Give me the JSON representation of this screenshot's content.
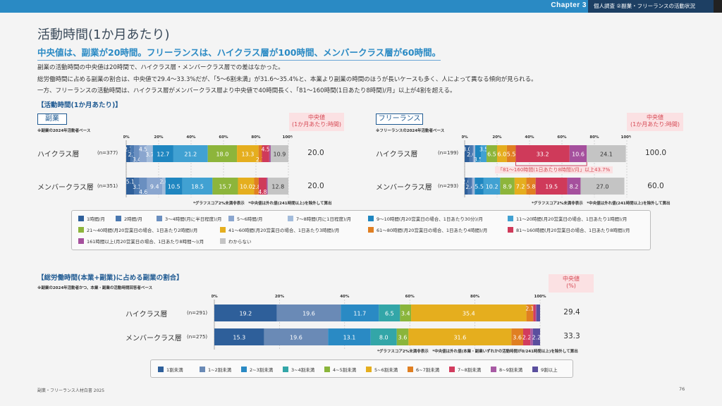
{
  "header": {
    "chapter": "Chapter 3",
    "section": "個人調査 ②副業・フリーランスの活動状況"
  },
  "page": {
    "title": "活動時間(1か月あたり)",
    "lead": "中央値は、副業が20時間。フリーランスは、ハイクラス層が100時間、メンバークラス層が60時間。",
    "body": [
      "副業の活動時間の中央値は20時間で、ハイクラス層・メンバークラス層での差はなかった。",
      "総労働時間に占める副業の割合は、中央値で29.4〜33.3%だが、「5〜6割未満」が31.6〜35.4%と、本業より副業の時間のほうが長いケースも多く、人によって異なる傾向が見られる。",
      "一方、フリーランスの活動時間は、ハイクラス層がメンバークラス層より中央値で40時間長く、「81〜160時間(1日あたり8時間)/月」以上が4割を超える。"
    ]
  },
  "section1": {
    "heading": "【活動時間(1か月あたり)】",
    "note_graph": "*グラフスコア2%未満非表示",
    "note_median": "*中央値は外れ値(241時間以上)を除外して算出"
  },
  "section2": {
    "heading": "【総労働時間(本業+副業)に占める副業の割合】",
    "base": "※副業の2024年活動者かつ、本業・副業の活動時間回答者ベース",
    "median_header": [
      "中央値",
      "(%)"
    ],
    "note": "*グラフスコア2%未満非表示　*中央値は外れ値(本業・副業いずれかの活動時間が0/241時間以上)を除外して算出"
  },
  "colors": {
    "hours": [
      "#2e5f9a",
      "#4a78b0",
      "#6a8fc0",
      "#8aa6cf",
      "#a3bcdb",
      "#1f86c0",
      "#41a1d2",
      "#8db53b",
      "#e5ae1e",
      "#e07f22",
      "#cf3a5a",
      "#a5509d",
      "#c4c4c4"
    ],
    "share": [
      "#2e5f9a",
      "#6a8ab6",
      "#2a8ac4",
      "#33a6a8",
      "#8ab53b",
      "#e5ae1e",
      "#e07f22",
      "#d23c5e",
      "#a85aa4",
      "#5a4f9e"
    ],
    "accent": "#2a8ac4",
    "median": "#d64a55"
  },
  "legend_hours": [
    "1時間/月",
    "2時間/月",
    "3〜4時間(月に半日程度)/月",
    "5〜6時間/月",
    "7〜8時間(月に1日程度)/月",
    "9〜10時間(月20営業日の場合、1日あたり30分)/月",
    "11〜20時間(月20営業日の場合、1日あたり1時間)/月",
    "21〜40時間(月20営業日の場合、1日あたり2時間)/月",
    "41〜60時間(月20営業日の場合、1日あたり3時間)/月",
    "61〜80時間(月20営業日の場合、1日あたり4時間)/月",
    "81〜160時間(月20営業日の場合、1日あたり8時間)/月",
    "161時間以上(月20営業日の場合、1日あたり8時間〜)/月",
    "わからない"
  ],
  "legend_share": [
    "1割未満",
    "1~2割未満",
    "2~3割未満",
    "3~4割未満",
    "4~5割未満",
    "5~6割未満",
    "6~7割未満",
    "7~8割未満",
    "8~9割未満",
    "9割以上"
  ],
  "chart_data": [
    {
      "type": "bar",
      "orientation": "horizontal-stacked-100",
      "panel": "副業",
      "base": "※副業の2024年活動者ベース",
      "median_header": [
        "中央値",
        "(1か月あたり:時間)"
      ],
      "xticks": [
        "0%",
        "20%",
        "40%",
        "60%",
        "80%",
        "100%"
      ],
      "xlim": [
        0,
        100
      ],
      "categories": [
        "1時間/月",
        "2時間/月",
        "3〜4時間",
        "5〜6時間",
        "7〜8時間",
        "9〜10時間",
        "11〜20時間",
        "21〜40時間",
        "41〜60時間",
        "61〜80時間",
        "81〜160時間",
        "161時間以上",
        "わからない"
      ],
      "rows": [
        {
          "label": "ハイクラス層",
          "n": "(n=377)",
          "median": "20.0",
          "values": [
            2.7,
            2.1,
            3.4,
            4.5,
            3.7,
            12.7,
            21.2,
            18.0,
            13.3,
            2.1,
            4.5,
            0.9,
            10.9
          ],
          "labels": [
            "2.7",
            "2.1",
            "3.4",
            "4.5",
            "3.7",
            "12.7",
            "21.2",
            "18.0",
            "13.3",
            "2.1",
            "4.5",
            "",
            "10.9"
          ]
        },
        {
          "label": "メンバークラス層",
          "n": "(n=351)",
          "median": "20.0",
          "values": [
            5.1,
            3.1,
            4.6,
            9.4,
            2.0,
            10.5,
            18.5,
            15.7,
            10.0,
            2.8,
            4.8,
            0.7,
            12.8
          ],
          "labels": [
            "5.1",
            "3.1",
            "4.6",
            "9.4",
            "2.0",
            "10.5",
            "18.5",
            "15.7",
            "10.0",
            "2.8",
            "4.8",
            "",
            "12.8"
          ]
        }
      ]
    },
    {
      "type": "bar",
      "orientation": "horizontal-stacked-100",
      "panel": "フリーランス",
      "base": "※フリーランスの2024年活動者ベース",
      "median_header": [
        "中央値",
        "(1か月あたり:時間)"
      ],
      "xticks": [
        "0%",
        "20%",
        "40%",
        "60%",
        "80%",
        "100%"
      ],
      "xlim": [
        0,
        100
      ],
      "annotation": "「81〜160時間(1日あたり8時間)/月」以上43.7%",
      "categories": [
        "1時間/月",
        "2時間/月",
        "3〜4時間",
        "5〜6時間",
        "7〜8時間",
        "9〜10時間",
        "11〜20時間",
        "21〜40時間",
        "41〜60時間",
        "61〜80時間",
        "81〜160時間",
        "161時間以上",
        "わからない"
      ],
      "rows": [
        {
          "label": "ハイクラス層",
          "n": "(n=199)",
          "median": "100.0",
          "values": [
            3.0,
            2.0,
            0.5,
            0.5,
            0.5,
            3.5,
            3.5,
            6.5,
            6.0,
            5.5,
            33.2,
            10.6,
            24.1
          ],
          "labels": [
            "3.0",
            "2.0",
            "",
            "",
            "",
            "3.5",
            "3.5",
            "6.5",
            "6.0",
            "5.5",
            "33.2",
            "10.6",
            "24.1"
          ]
        },
        {
          "label": "メンバークラス層",
          "n": "(n=293)",
          "median": "60.0",
          "values": [
            2.0,
            2.4,
            0.5,
            0.5,
            0.8,
            5.5,
            10.2,
            8.9,
            7.2,
            5.8,
            19.5,
            8.2,
            27.0
          ],
          "labels": [
            "2.0",
            "2.4",
            "",
            "",
            "",
            "5.5",
            "10.2",
            "8.9",
            "7.2",
            "5.8",
            "19.5",
            "8.2",
            "27.0"
          ]
        }
      ]
    },
    {
      "type": "bar",
      "orientation": "horizontal-stacked-100",
      "panel": "総労働時間に占める副業の割合",
      "xticks": [
        "0%",
        "20%",
        "40%",
        "60%",
        "80%",
        "100%"
      ],
      "xlim": [
        0,
        100
      ],
      "categories": [
        "1割未満",
        "1~2割未満",
        "2~3割未満",
        "3~4割未満",
        "4~5割未満",
        "5~6割未満",
        "6~7割未満",
        "7~8割未満",
        "8~9割未満",
        "9割以上"
      ],
      "rows": [
        {
          "label": "ハイクラス層",
          "n": "(n=291)",
          "median": "29.4",
          "values": [
            19.2,
            19.6,
            11.7,
            6.5,
            3.4,
            35.4,
            2.1,
            0.7,
            0.3,
            1.1
          ],
          "labels": [
            "19.2",
            "19.6",
            "11.7",
            "6.5",
            "3.4",
            "35.4",
            "2.1",
            "",
            "",
            ""
          ]
        },
        {
          "label": "メンバークラス層",
          "n": "(n=275)",
          "median": "33.3",
          "values": [
            15.3,
            19.6,
            13.1,
            8.0,
            3.6,
            31.6,
            3.6,
            2.2,
            0.8,
            2.2
          ],
          "labels": [
            "15.3",
            "19.6",
            "13.1",
            "8.0",
            "3.6",
            "31.6",
            "3.6",
            "2.2",
            "",
            "2.2"
          ]
        }
      ]
    }
  ],
  "footer": {
    "left": "副業・フリーランス人材白書 2025",
    "page": "76"
  }
}
